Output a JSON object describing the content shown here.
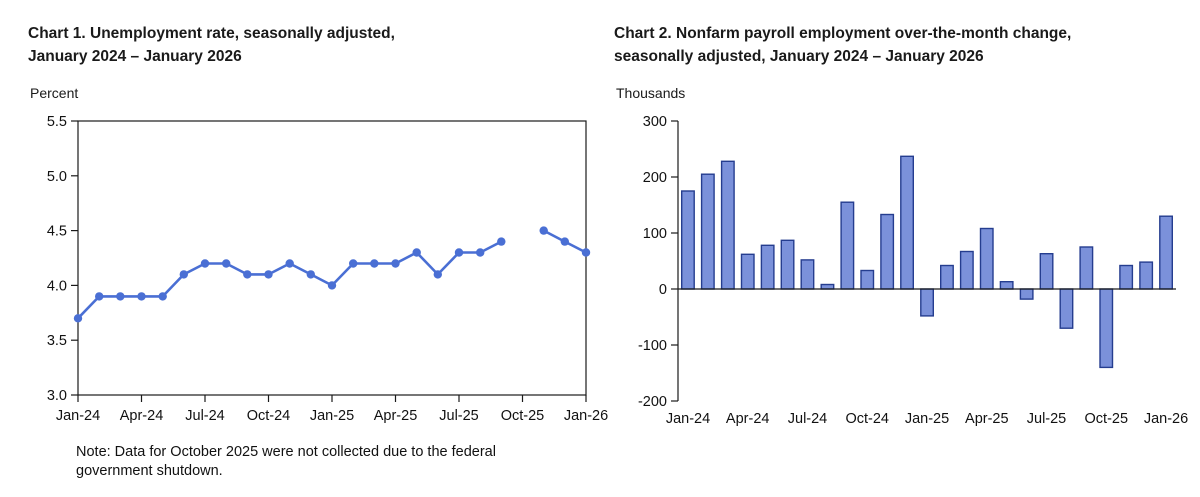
{
  "chart_data": [
    {
      "type": "line",
      "title_line1": "Chart 1. Unemployment rate, seasonally adjusted,",
      "title_line2": "January 2024 – January 2026",
      "unit_label": "Percent",
      "categories": [
        "Jan-24",
        "Feb-24",
        "Mar-24",
        "Apr-24",
        "May-24",
        "Jun-24",
        "Jul-24",
        "Aug-24",
        "Sep-24",
        "Oct-24",
        "Nov-24",
        "Dec-24",
        "Jan-25",
        "Feb-25",
        "Mar-25",
        "Apr-25",
        "May-25",
        "Jun-25",
        "Jul-25",
        "Aug-25",
        "Sep-25",
        "Oct-25",
        "Nov-25",
        "Dec-25",
        "Jan-26"
      ],
      "values": [
        3.7,
        3.9,
        3.9,
        3.9,
        3.9,
        4.1,
        4.2,
        4.2,
        4.1,
        4.1,
        4.2,
        4.1,
        4.0,
        4.2,
        4.2,
        4.2,
        4.3,
        4.1,
        4.3,
        4.3,
        4.4,
        null,
        4.5,
        4.4,
        4.3
      ],
      "xtick_labels": [
        "Jan-24",
        "Apr-24",
        "Jul-24",
        "Oct-24",
        "Jan-25",
        "Apr-25",
        "Jul-25",
        "Oct-25",
        "Jan-26"
      ],
      "yticks": [
        5.5,
        5.0,
        4.5,
        4.0,
        3.5,
        3.0
      ],
      "ylim": [
        3.0,
        5.5
      ],
      "line_color": "#4a6fd4",
      "axis_color": "#1a1a1a",
      "note": "Note: Data for October 2025 were not collected due to the federal government shutdown."
    },
    {
      "type": "bar",
      "title_line1": "Chart 2. Nonfarm payroll employment over-the-month change,",
      "title_line2": "seasonally adjusted, January 2024 – January 2026",
      "unit_label": "Thousands",
      "categories": [
        "Jan-24",
        "Feb-24",
        "Mar-24",
        "Apr-24",
        "May-24",
        "Jun-24",
        "Jul-24",
        "Aug-24",
        "Sep-24",
        "Oct-24",
        "Nov-24",
        "Dec-24",
        "Jan-25",
        "Feb-25",
        "Mar-25",
        "Apr-25",
        "May-25",
        "Jun-25",
        "Jul-25",
        "Aug-25",
        "Sep-25",
        "Oct-25",
        "Nov-25",
        "Dec-25",
        "Jan-26"
      ],
      "values": [
        175,
        205,
        228,
        62,
        78,
        87,
        52,
        8,
        155,
        33,
        133,
        237,
        -48,
        42,
        67,
        108,
        13,
        -18,
        63,
        -70,
        75,
        -140,
        42,
        48,
        130
      ],
      "xtick_labels": [
        "Jan-24",
        "Apr-24",
        "Jul-24",
        "Oct-24",
        "Jan-25",
        "Apr-25",
        "Jul-25",
        "Oct-25",
        "Jan-26"
      ],
      "yticks": [
        300,
        200,
        100,
        0,
        -100,
        -200
      ],
      "ylim": [
        -200,
        300
      ],
      "bar_fill": "#7b91da",
      "bar_stroke": "#253d8f",
      "axis_color": "#1a1a1a"
    }
  ]
}
